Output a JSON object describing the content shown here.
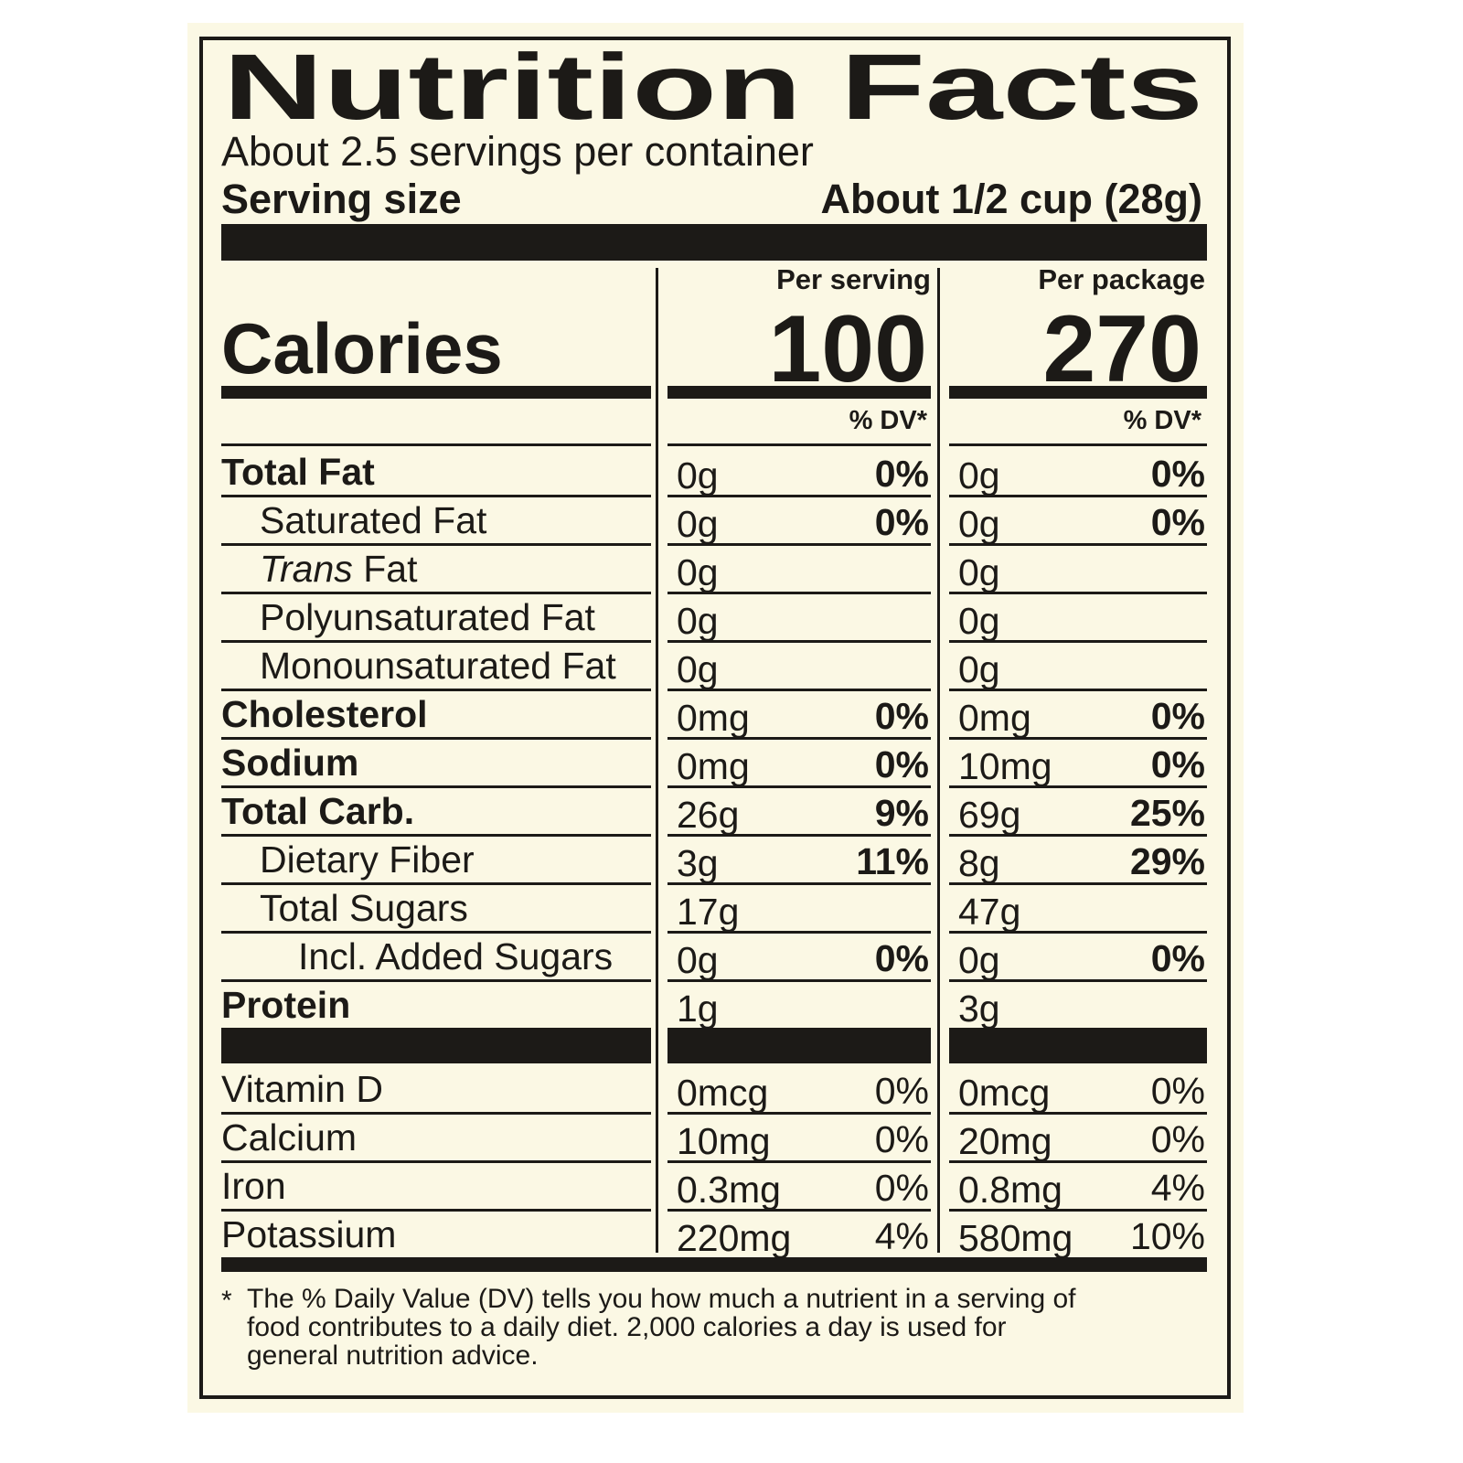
{
  "title": "Nutrition Facts",
  "servings": "About 2.5 servings per container",
  "serving_size": {
    "label": "Serving size",
    "value": "About 1/2 cup (28g)"
  },
  "calories": {
    "label": "Calories",
    "columns": [
      {
        "header": "Per serving",
        "value": "100",
        "dv_header": "% DV*"
      },
      {
        "header": "Per package",
        "value": "270",
        "dv_header": "% DV*"
      }
    ]
  },
  "nutrients": [
    {
      "name": "Total Fat",
      "bold": true,
      "serving": {
        "amount": "0g",
        "dv": "0%"
      },
      "package": {
        "amount": "0g",
        "dv": "0%"
      }
    },
    {
      "name": "Saturated Fat",
      "indent": 1,
      "serving": {
        "amount": "0g",
        "dv": "0%"
      },
      "package": {
        "amount": "0g",
        "dv": "0%"
      }
    },
    {
      "name_parts": [
        {
          "text": "Trans",
          "italic": true
        },
        {
          "text": "Fat"
        }
      ],
      "indent": 1,
      "serving": {
        "amount": "0g"
      },
      "package": {
        "amount": "0g"
      }
    },
    {
      "name": "Polyunsaturated Fat",
      "indent": 1,
      "serving": {
        "amount": "0g"
      },
      "package": {
        "amount": "0g"
      }
    },
    {
      "name": "Monounsaturated Fat",
      "indent": 1,
      "serving": {
        "amount": "0g"
      },
      "package": {
        "amount": "0g"
      }
    },
    {
      "name": "Cholesterol",
      "bold": true,
      "serving": {
        "amount": "0mg",
        "dv": "0%"
      },
      "package": {
        "amount": "0mg",
        "dv": "0%"
      }
    },
    {
      "name": "Sodium",
      "bold": true,
      "serving": {
        "amount": "0mg",
        "dv": "0%"
      },
      "package": {
        "amount": "10mg",
        "dv": "0%"
      }
    },
    {
      "name": "Total Carb.",
      "bold": true,
      "serving": {
        "amount": "26g",
        "dv": "9%"
      },
      "package": {
        "amount": "69g",
        "dv": "25%"
      }
    },
    {
      "name": "Dietary Fiber",
      "indent": 1,
      "serving": {
        "amount": "3g",
        "dv": "11%"
      },
      "package": {
        "amount": "8g",
        "dv": "29%"
      }
    },
    {
      "name": "Total Sugars",
      "indent": 1,
      "serving": {
        "amount": "17g"
      },
      "package": {
        "amount": "47g"
      }
    },
    {
      "name": "Incl. Added Sugars",
      "indent": 2,
      "serving": {
        "amount": "0g",
        "dv": "0%"
      },
      "package": {
        "amount": "0g",
        "dv": "0%"
      }
    },
    {
      "name": "Protein",
      "bold": true,
      "serving": {
        "amount": "1g"
      },
      "package": {
        "amount": "3g"
      }
    }
  ],
  "vitamins": [
    {
      "name": "Vitamin D",
      "serving": {
        "amount": "0mcg",
        "dv": "0%"
      },
      "package": {
        "amount": "0mcg",
        "dv": "0%"
      }
    },
    {
      "name": "Calcium",
      "serving": {
        "amount": "10mg",
        "dv": "0%"
      },
      "package": {
        "amount": "20mg",
        "dv": "0%"
      }
    },
    {
      "name": "Iron",
      "serving": {
        "amount": "0.3mg",
        "dv": "0%"
      },
      "package": {
        "amount": "0.8mg",
        "dv": "4%"
      }
    },
    {
      "name": "Potassium",
      "serving": {
        "amount": "220mg",
        "dv": "4%"
      },
      "package": {
        "amount": "580mg",
        "dv": "10%"
      }
    }
  ],
  "footnote": {
    "mark": "*",
    "lines": [
      "The % Daily Value (DV) tells you how much a nutrient in a serving of",
      "food contributes to a daily diet. 2,000 calories a day is used for",
      "general nutrition advice."
    ]
  }
}
